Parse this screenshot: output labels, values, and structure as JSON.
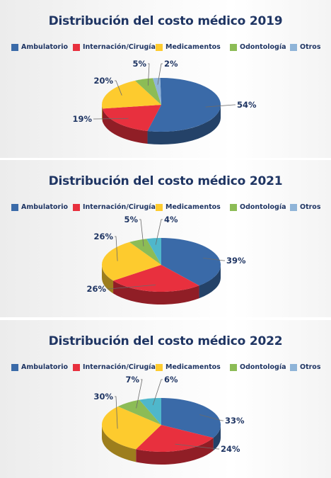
{
  "colors": {
    "Ambulatorio": "#3a6aa8",
    "Internación/Cirugía": "#e8303e",
    "Medicamentos": "#fdcb2e",
    "Odontología": "#8cbc56",
    "Otros": "#8fb4d8",
    "Otros_2021": "#4fb7cb",
    "title": "#1f3563"
  },
  "chart_data": [
    {
      "type": "pie",
      "title": "Distribución del costo médico 2019",
      "legend": [
        "Ambulatorio",
        "Internación/Cirugía",
        "Medicamentos",
        "Odontología",
        "Otros"
      ],
      "legend_position": "top",
      "categories": [
        "Ambulatorio",
        "Internación/Cirugía",
        "Medicamentos",
        "Odontología",
        "Otros"
      ],
      "values": [
        54,
        19,
        20,
        5,
        2
      ],
      "labels": [
        "54%",
        "19%",
        "20%",
        "5%",
        "2%"
      ]
    },
    {
      "type": "pie",
      "title": "Distribución del costo médico 2021",
      "legend": [
        "Ambulatorio",
        "Internación/Cirugía",
        "Medicamentos",
        "Odontología",
        "Otros"
      ],
      "legend_position": "top",
      "categories": [
        "Ambulatorio",
        "Internación/Cirugía",
        "Medicamentos",
        "Odontología",
        "Otros"
      ],
      "values": [
        39,
        26,
        26,
        5,
        4
      ],
      "labels": [
        "39%",
        "26%",
        "26%",
        "5%",
        "4%"
      ]
    },
    {
      "type": "pie",
      "title": "Distribución del costo médico 2022",
      "legend": [
        "Ambulatorio",
        "Internación/Cirugía",
        "Medicamentos",
        "Odontología",
        "Otros"
      ],
      "legend_position": "top",
      "categories": [
        "Ambulatorio",
        "Internación/Cirugía",
        "Medicamentos",
        "Odontología",
        "Otros"
      ],
      "values": [
        33,
        24,
        30,
        7,
        6
      ],
      "labels": [
        "33%",
        "24%",
        "30%",
        "7%",
        "6%"
      ]
    }
  ]
}
